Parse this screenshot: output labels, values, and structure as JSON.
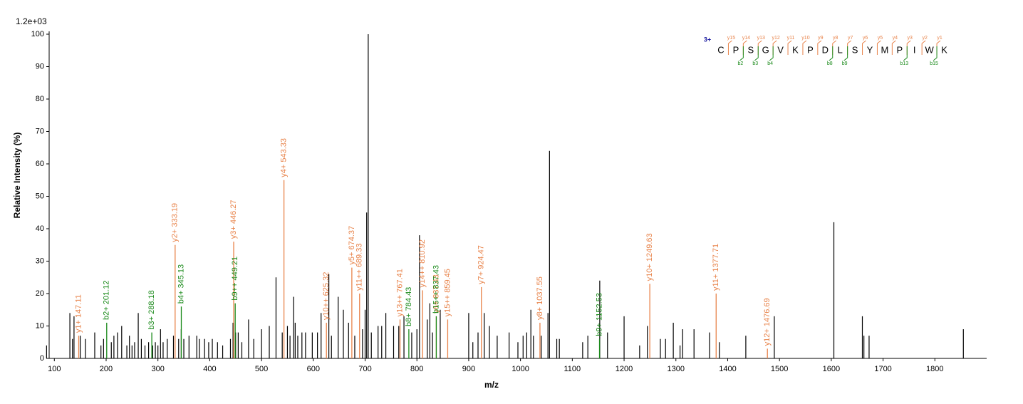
{
  "chart_data": {
    "type": "spectrum",
    "max_intensity_label": "1.2e+03",
    "x_label": "m/z",
    "y_label": "Relative  Intensity (%)",
    "xlim": [
      90,
      1900
    ],
    "ylim": [
      0,
      100
    ],
    "xticks": [
      100,
      200,
      300,
      400,
      500,
      600,
      700,
      800,
      900,
      1000,
      1100,
      1200,
      1300,
      1400,
      1500,
      1600,
      1700,
      1800
    ],
    "yticks": [
      0,
      10,
      20,
      30,
      40,
      50,
      60,
      70,
      80,
      90,
      100
    ],
    "peaks": {
      "color": "#000000",
      "x": [
        85,
        130,
        135,
        138,
        150,
        160,
        178,
        190,
        195,
        210,
        215,
        222,
        230,
        240,
        245,
        250,
        255,
        262,
        268,
        275,
        282,
        290,
        295,
        300,
        305,
        310,
        318,
        330,
        340,
        345,
        350,
        360,
        375,
        380,
        390,
        398,
        405,
        415,
        425,
        440,
        445,
        450,
        455,
        462,
        475,
        485,
        500,
        515,
        528,
        540,
        550,
        555,
        562,
        565,
        570,
        578,
        585,
        598,
        608,
        615,
        630,
        635,
        648,
        658,
        668,
        680,
        695,
        700,
        703,
        706,
        712,
        725,
        732,
        740,
        755,
        765,
        775,
        790,
        800,
        805,
        820,
        825,
        830,
        845,
        900,
        908,
        918,
        930,
        940,
        955,
        978,
        995,
        1005,
        1012,
        1020,
        1025,
        1040,
        1053,
        1056,
        1070,
        1075,
        1120,
        1130,
        1153,
        1168,
        1200,
        1230,
        1245,
        1270,
        1280,
        1295,
        1308,
        1313,
        1335,
        1365,
        1384,
        1435,
        1490,
        1605,
        1660,
        1663,
        1673,
        1855
      ],
      "values": [
        4,
        14,
        6,
        13,
        7,
        6,
        8,
        4,
        6,
        5,
        7,
        8,
        10,
        4,
        7,
        4,
        5,
        14,
        6,
        4,
        5,
        4,
        5,
        4,
        9,
        5,
        6,
        7,
        6,
        9,
        6,
        7,
        7,
        6,
        6,
        5,
        6,
        5,
        4,
        6,
        11,
        8,
        8,
        5,
        12,
        6,
        9,
        10,
        25,
        8,
        10,
        7,
        19,
        11,
        7,
        8,
        8,
        8,
        8,
        14,
        26,
        7,
        19,
        15,
        11,
        7,
        9,
        15,
        45,
        100,
        8,
        10,
        10,
        14,
        10,
        10,
        13,
        8,
        9,
        38,
        12,
        17,
        8,
        15,
        14,
        5,
        8,
        14,
        10,
        7,
        8,
        5,
        7,
        8,
        15,
        7,
        7,
        14,
        64,
        6,
        6,
        5,
        7,
        24,
        8,
        13,
        4,
        10,
        6,
        6,
        11,
        4,
        9,
        9,
        8,
        5,
        7,
        13,
        42,
        13,
        7,
        7,
        9
      ]
    },
    "annotated": [
      {
        "color": "#e8834a",
        "x": [
          147.11,
          333.19,
          446.27,
          543.33,
          625.32,
          674.37,
          689.33,
          767.41,
          810.92,
          837.43,
          859.45,
          924.47,
          1037.55,
          1249.63,
          1377.71,
          1476.69
        ],
        "values": [
          7,
          35,
          36,
          55,
          11,
          28,
          20,
          12,
          21,
          13,
          12,
          22,
          11,
          23,
          20,
          3
        ],
        "labels": [
          "y1+ 147.11",
          "y2+ 333.19",
          "y3+ 446.27",
          "y4+ 543.33",
          "y10++ 625.32",
          "y5+ 674.37",
          "y11++ 689.33",
          "y13++ 767.41",
          "y14++ 810.92",
          "y6+ 837.43",
          "y15++ 859.45",
          "y7+ 924.47",
          "y8+ 1037.55",
          "y10+ 1249.63",
          "y11+ 1377.71",
          "y12+ 1476.69"
        ]
      },
      {
        "color": "#1a8a1a",
        "x": [
          201.12,
          288.18,
          345.13,
          449.21,
          784.43,
          837.43,
          1152.53
        ],
        "values": [
          11,
          8,
          16,
          17,
          9,
          13,
          6
        ],
        "labels": [
          "b2+ 201.12",
          "b3+ 288.18",
          "b4+ 345.13",
          "b9++ 449.21",
          "b8+ 784.43",
          "b15++ 837.43",
          "b9+ 1152.53"
        ]
      }
    ],
    "sequence": {
      "charge": "3+",
      "residues": [
        "C",
        "P",
        "S",
        "G",
        "V",
        "K",
        "P",
        "D",
        "L",
        "S",
        "Y",
        "M",
        "P",
        "I",
        "W",
        "K"
      ],
      "y_ions": [
        "y15",
        "y14",
        "y13",
        "y12",
        "y11",
        "y10",
        "y9",
        "y8",
        "y7",
        "y6",
        "y5",
        "y4",
        "y3",
        "y2",
        "y1"
      ],
      "b_ions": [
        null,
        "b2",
        "b3",
        "b4",
        null,
        null,
        null,
        "b8",
        "b9",
        null,
        null,
        null,
        "b13",
        null,
        "b15"
      ]
    }
  }
}
